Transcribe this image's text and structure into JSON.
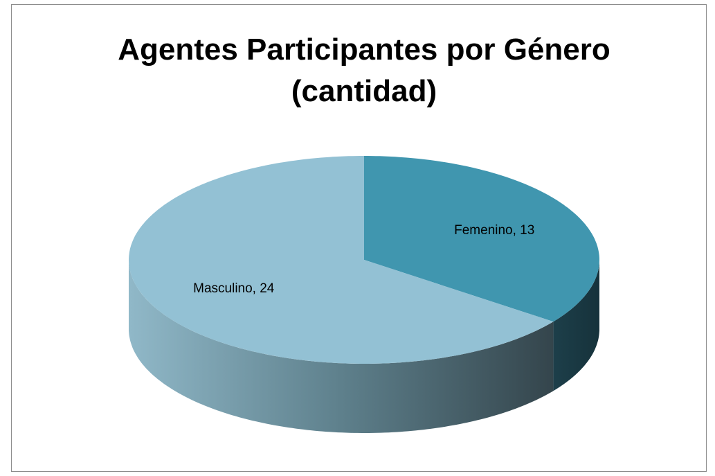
{
  "chart_data": {
    "type": "pie3d",
    "title": "Agentes Participantes por Género (cantidad)",
    "categories": [
      "Femenino",
      "Masculino"
    ],
    "values": [
      13,
      24
    ],
    "value_labels": [
      "Femenino, 13",
      "Masculino, 24"
    ],
    "colors": [
      "#4096af",
      "#93c1d4"
    ]
  }
}
